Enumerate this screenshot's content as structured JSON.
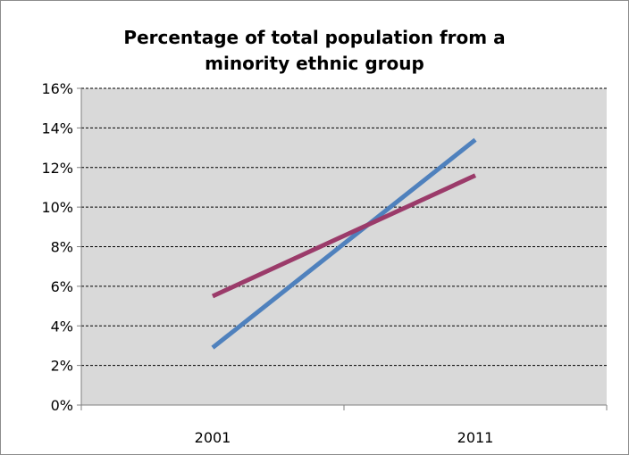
{
  "chart_data": {
    "type": "line",
    "title": "Percentage of total population from a\nminority ethnic group",
    "xlabel": "",
    "ylabel": "",
    "categories": [
      "2001",
      "2011"
    ],
    "y_ticks": [
      "0%",
      "2%",
      "4%",
      "6%",
      "8%",
      "10%",
      "12%",
      "14%",
      "16%"
    ],
    "ylim": [
      0,
      16
    ],
    "grid": true,
    "legend": "none",
    "plot_background": "#d9d9d9",
    "series": [
      {
        "values": [
          2.9,
          13.4
        ],
        "color": "#4f81bd"
      },
      {
        "values": [
          5.5,
          11.6
        ],
        "color": "#9b3b6a"
      }
    ]
  }
}
